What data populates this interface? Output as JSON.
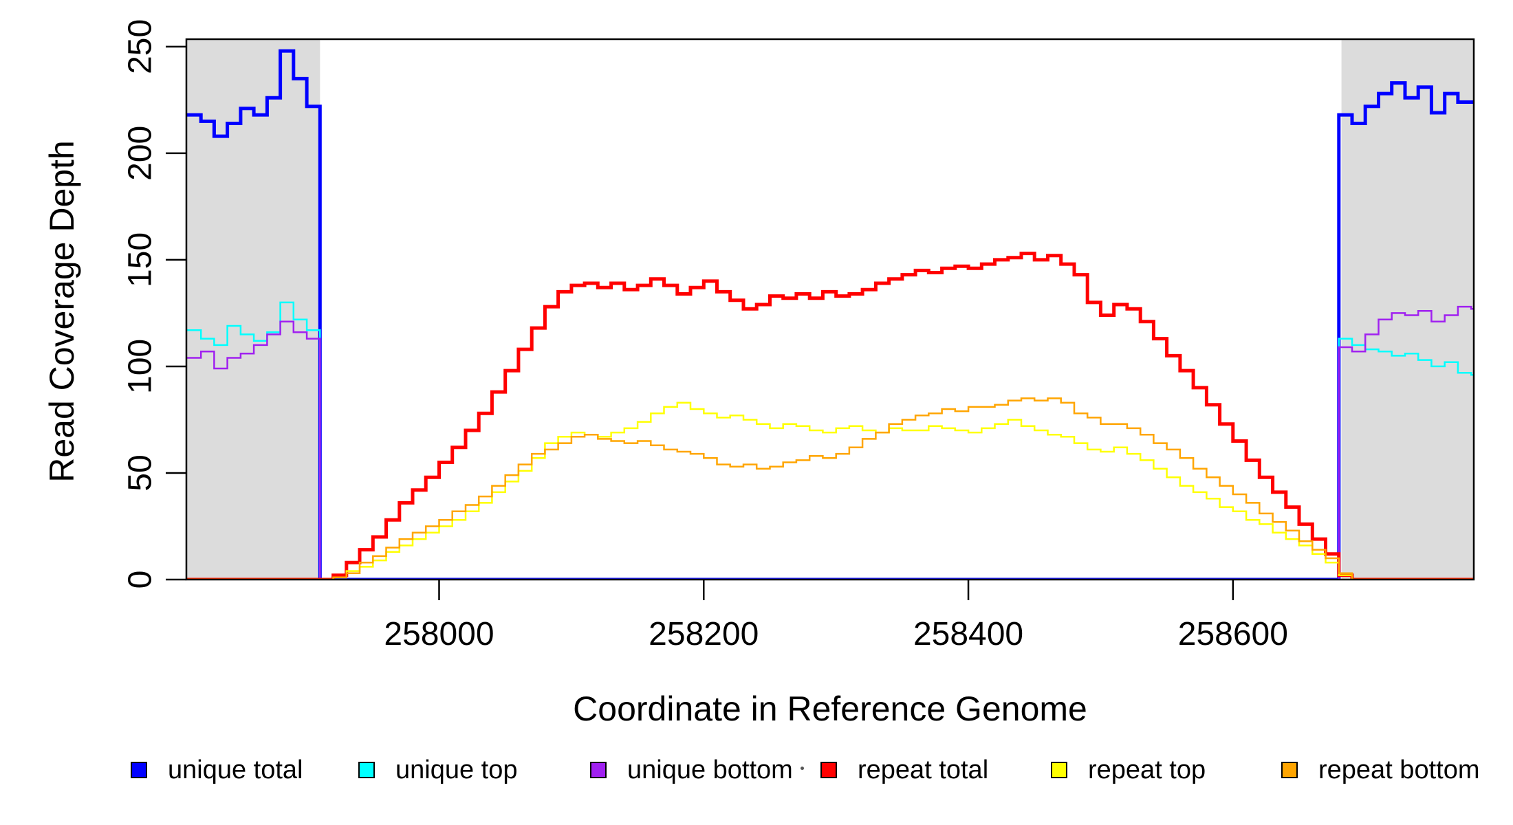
{
  "figure": {
    "background_color": "#FFFFFF",
    "shading_color": "#DCDCDC",
    "axis_color": "#000000",
    "stray_mark": "dot"
  },
  "legend": {
    "items": [
      {
        "label": "unique total",
        "color": "#0000FF"
      },
      {
        "label": "unique top",
        "color": "#00FFFF"
      },
      {
        "label": "unique bottom",
        "color": "#A020F0"
      },
      {
        "label": "repeat total",
        "color": "#FF0000"
      },
      {
        "label": "repeat top",
        "color": "#FFFF00"
      },
      {
        "label": "repeat bottom",
        "color": "#FFA500"
      }
    ]
  },
  "chart_data": {
    "type": "line",
    "title": "",
    "xlabel": "Coordinate in Reference Genome",
    "ylabel": "Read Coverage Depth",
    "xlim": [
      257809,
      258782
    ],
    "ylim": [
      0,
      253.5
    ],
    "x_ticks": [
      258000,
      258200,
      258400,
      258600
    ],
    "y_ticks": [
      0,
      50,
      100,
      150,
      200,
      250
    ],
    "grid": false,
    "legend_position": "bottom",
    "interpolation": "step-after",
    "shaded_regions": [
      [
        257809,
        257910
      ],
      [
        258682,
        258782
      ]
    ],
    "x_start": 257810,
    "x_step": 10,
    "series": [
      {
        "name": "unique total",
        "color": "#0000FF",
        "width": 5,
        "values": [
          218,
          215,
          208,
          214,
          221,
          218,
          226,
          248,
          235,
          222,
          0,
          0,
          0,
          0,
          0,
          0,
          0,
          0,
          0,
          0,
          0,
          0,
          0,
          0,
          0,
          0,
          0,
          0,
          0,
          0,
          0,
          0,
          0,
          0,
          0,
          0,
          0,
          0,
          0,
          0,
          0,
          0,
          0,
          0,
          0,
          0,
          0,
          0,
          0,
          0,
          0,
          0,
          0,
          0,
          0,
          0,
          0,
          0,
          0,
          0,
          0,
          0,
          0,
          0,
          0,
          0,
          0,
          0,
          0,
          0,
          0,
          0,
          0,
          0,
          0,
          0,
          0,
          0,
          0,
          0,
          0,
          0,
          0,
          0,
          0,
          0,
          0,
          218,
          214,
          222,
          228,
          233,
          226,
          231,
          219,
          228,
          224,
          224
        ]
      },
      {
        "name": "unique top",
        "color": "#00FFFF",
        "width": 2.5,
        "values": [
          117,
          113,
          110,
          119,
          115,
          112,
          116,
          130,
          122,
          117,
          0,
          0,
          0,
          0,
          0,
          0,
          0,
          0,
          0,
          0,
          0,
          0,
          0,
          0,
          0,
          0,
          0,
          0,
          0,
          0,
          0,
          0,
          0,
          0,
          0,
          0,
          0,
          0,
          0,
          0,
          0,
          0,
          0,
          0,
          0,
          0,
          0,
          0,
          0,
          0,
          0,
          0,
          0,
          0,
          0,
          0,
          0,
          0,
          0,
          0,
          0,
          0,
          0,
          0,
          0,
          0,
          0,
          0,
          0,
          0,
          0,
          0,
          0,
          0,
          0,
          0,
          0,
          0,
          0,
          0,
          0,
          0,
          0,
          0,
          0,
          0,
          0,
          113,
          110,
          108,
          107,
          105,
          106,
          103,
          100,
          102,
          97,
          96
        ]
      },
      {
        "name": "unique bottom",
        "color": "#A020F0",
        "width": 2.5,
        "values": [
          104,
          107,
          99,
          104,
          106,
          110,
          115,
          121,
          116,
          113,
          0,
          0,
          0,
          0,
          0,
          0,
          0,
          0,
          0,
          0,
          0,
          0,
          0,
          0,
          0,
          0,
          0,
          0,
          0,
          0,
          0,
          0,
          0,
          0,
          0,
          0,
          0,
          0,
          0,
          0,
          0,
          0,
          0,
          0,
          0,
          0,
          0,
          0,
          0,
          0,
          0,
          0,
          0,
          0,
          0,
          0,
          0,
          0,
          0,
          0,
          0,
          0,
          0,
          0,
          0,
          0,
          0,
          0,
          0,
          0,
          0,
          0,
          0,
          0,
          0,
          0,
          0,
          0,
          0,
          0,
          0,
          0,
          0,
          0,
          0,
          0,
          0,
          109,
          107,
          115,
          122,
          125,
          124,
          126,
          121,
          124,
          128,
          127
        ]
      },
      {
        "name": "repeat total",
        "color": "#FF0000",
        "width": 5,
        "values": [
          0,
          0,
          0,
          0,
          0,
          0,
          0,
          0,
          0,
          0,
          0,
          2,
          8,
          14,
          20,
          28,
          36,
          42,
          48,
          55,
          62,
          70,
          78,
          88,
          98,
          108,
          118,
          128,
          135,
          138,
          139,
          137,
          139,
          136,
          138,
          141,
          138,
          134,
          137,
          140,
          135,
          131,
          127,
          129,
          133,
          132,
          134,
          132,
          135,
          133,
          134,
          136,
          139,
          141,
          143,
          145,
          144,
          146,
          147,
          146,
          148,
          150,
          151,
          153,
          150,
          152,
          148,
          143,
          130,
          124,
          129,
          127,
          121,
          113,
          105,
          98,
          90,
          82,
          73,
          65,
          56,
          48,
          41,
          34,
          26,
          19,
          12,
          2,
          0,
          0,
          0,
          0,
          0,
          0,
          0,
          0,
          0,
          0
        ]
      },
      {
        "name": "repeat top",
        "color": "#FFFF00",
        "width": 2.5,
        "values": [
          0,
          0,
          0,
          0,
          0,
          0,
          0,
          0,
          0,
          0,
          0,
          1,
          4,
          6,
          9,
          13,
          16,
          19,
          22,
          25,
          28,
          32,
          36,
          41,
          46,
          51,
          57,
          64,
          67,
          69,
          68,
          67,
          69,
          71,
          74,
          78,
          81,
          83,
          80,
          78,
          76,
          77,
          75,
          73,
          71,
          73,
          72,
          70,
          69,
          71,
          72,
          70,
          69,
          71,
          70,
          70,
          72,
          71,
          70,
          69,
          71,
          73,
          75,
          72,
          70,
          68,
          67,
          64,
          61,
          60,
          62,
          59,
          56,
          52,
          48,
          44,
          41,
          38,
          34,
          32,
          28,
          26,
          22,
          19,
          16,
          12,
          8,
          2,
          0,
          0,
          0,
          0,
          0,
          0,
          0,
          0,
          0,
          0
        ]
      },
      {
        "name": "repeat bottom",
        "color": "#FFA500",
        "width": 2.5,
        "values": [
          0,
          0,
          0,
          0,
          0,
          0,
          0,
          0,
          0,
          0,
          0,
          1,
          3,
          8,
          11,
          15,
          19,
          22,
          25,
          28,
          32,
          35,
          39,
          44,
          49,
          54,
          59,
          61,
          64,
          67,
          68,
          66,
          65,
          64,
          65,
          63,
          61,
          60,
          59,
          57,
          54,
          53,
          54,
          52,
          53,
          55,
          56,
          58,
          57,
          59,
          62,
          66,
          69,
          73,
          75,
          77,
          78,
          80,
          79,
          81,
          81,
          82,
          84,
          85,
          84,
          85,
          83,
          78,
          76,
          73,
          73,
          71,
          68,
          64,
          61,
          57,
          52,
          48,
          44,
          40,
          36,
          31,
          27,
          23,
          18,
          14,
          10,
          3,
          0,
          0,
          0,
          0,
          0,
          0,
          0,
          0,
          0,
          0
        ]
      }
    ]
  }
}
